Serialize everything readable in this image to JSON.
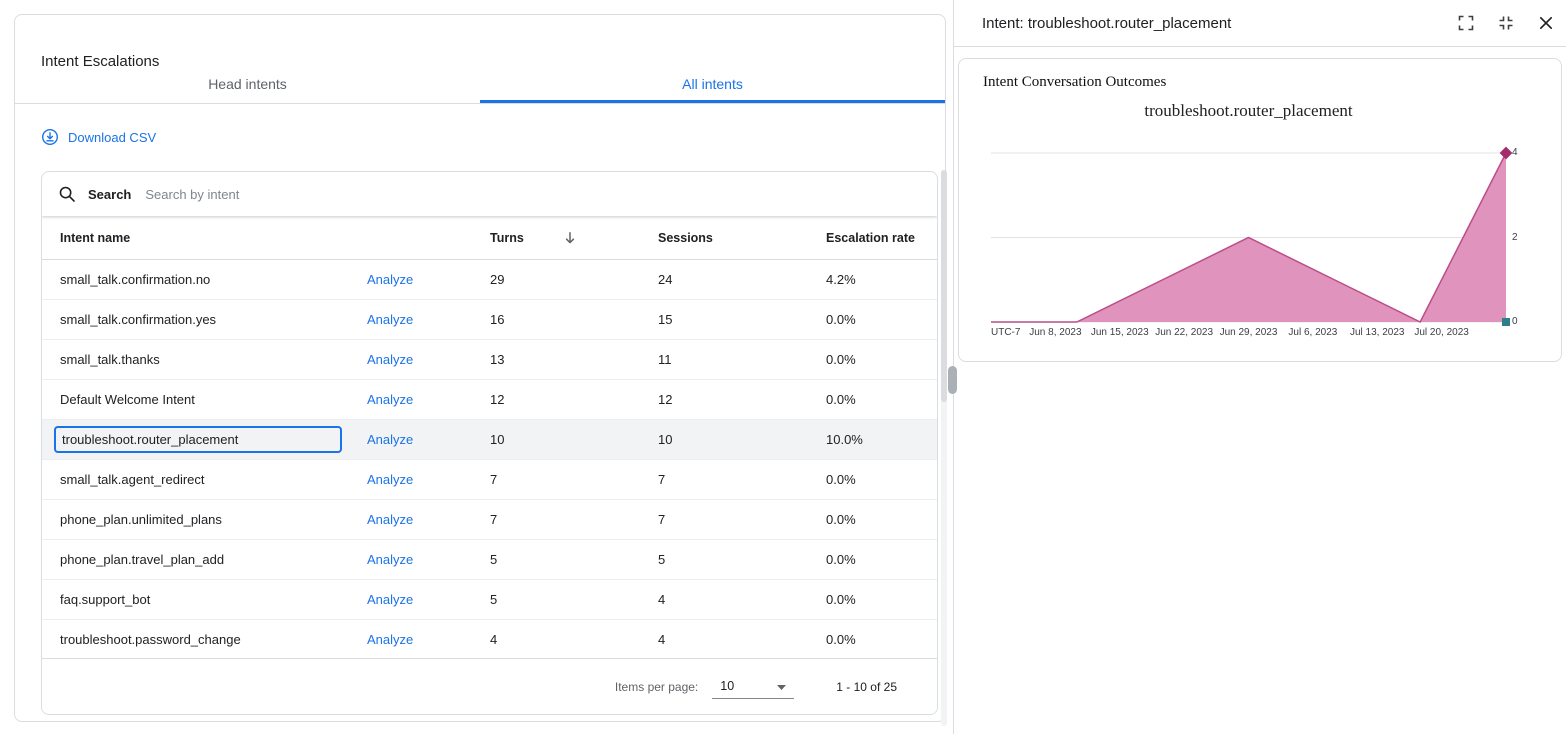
{
  "colors": {
    "accent_blue": "#1a73e8",
    "text_primary": "#202124",
    "text_secondary": "#5f6368",
    "border": "#dadce0",
    "selected_row_bg": "#f1f3f4",
    "gridline": "#e3e3e3",
    "chart_area_fill": "#df93bd",
    "chart_line": "#bc4d88",
    "marker_diamond": "#a42d6b",
    "marker_square": "#2d7f8e"
  },
  "left_panel": {
    "title": "Intent Escalations",
    "tabs": [
      {
        "label": "Head intents",
        "active": false
      },
      {
        "label": "All intents",
        "active": true
      }
    ],
    "download_csv_label": "Download CSV",
    "search": {
      "label": "Search",
      "placeholder": "Search by intent"
    },
    "table": {
      "columns": [
        "Intent name",
        "Turns",
        "Sessions",
        "Escalation rate"
      ],
      "analyze_label": "Analyze",
      "sort_column": "Turns",
      "sort_direction": "descending",
      "rows": [
        {
          "intent": "small_talk.confirmation.no",
          "turns": "29",
          "sessions": "24",
          "rate": "4.2%",
          "selected": false
        },
        {
          "intent": "small_talk.confirmation.yes",
          "turns": "16",
          "sessions": "15",
          "rate": "0.0%",
          "selected": false
        },
        {
          "intent": "small_talk.thanks",
          "turns": "13",
          "sessions": "11",
          "rate": "0.0%",
          "selected": false
        },
        {
          "intent": "Default Welcome Intent",
          "turns": "12",
          "sessions": "12",
          "rate": "0.0%",
          "selected": false
        },
        {
          "intent": "troubleshoot.router_placement",
          "turns": "10",
          "sessions": "10",
          "rate": "10.0%",
          "selected": true
        },
        {
          "intent": "small_talk.agent_redirect",
          "turns": "7",
          "sessions": "7",
          "rate": "0.0%",
          "selected": false
        },
        {
          "intent": "phone_plan.unlimited_plans",
          "turns": "7",
          "sessions": "7",
          "rate": "0.0%",
          "selected": false
        },
        {
          "intent": "phone_plan.travel_plan_add",
          "turns": "5",
          "sessions": "5",
          "rate": "0.0%",
          "selected": false
        },
        {
          "intent": "faq.support_bot",
          "turns": "5",
          "sessions": "4",
          "rate": "0.0%",
          "selected": false
        },
        {
          "intent": "troubleshoot.password_change",
          "turns": "4",
          "sessions": "4",
          "rate": "0.0%",
          "selected": false
        }
      ]
    },
    "pagination": {
      "items_per_page_label": "Items per page:",
      "page_size": "10",
      "range_label": "1 - 10 of 25"
    }
  },
  "right_panel": {
    "title": "Intent: troubleshoot.router_placement",
    "card_title": "Intent Conversation Outcomes"
  },
  "chart_data": {
    "type": "area",
    "title": "troubleshoot.router_placement",
    "timezone_label": "UTC-7",
    "x_labels": [
      "UTC-7",
      "Jun 8, 2023",
      "Jun 15, 2023",
      "Jun 22, 2023",
      "Jun 29, 2023",
      "Jul 6, 2023",
      "Jul 13, 2023",
      "Jul 20, 2023"
    ],
    "categories": [
      "Jun 8, 2023",
      "Jun 15, 2023",
      "Jun 22, 2023",
      "Jun 29, 2023",
      "Jul 6, 2023",
      "Jul 13, 2023",
      "Jul 20, 2023"
    ],
    "series": [
      {
        "name": "series-1",
        "values": [
          0,
          0,
          1,
          2,
          1,
          0,
          4
        ],
        "color": "#bc4d88",
        "fill": "#df93bd",
        "end_marker": "diamond"
      },
      {
        "name": "series-2",
        "values": [
          0,
          0,
          0,
          0,
          0,
          0,
          0
        ],
        "color": "#2d7f8e",
        "end_marker": "square"
      }
    ],
    "y_ticks": [
      4,
      2,
      0
    ],
    "ylim": [
      0,
      4
    ],
    "legend": "none",
    "grid": true
  }
}
